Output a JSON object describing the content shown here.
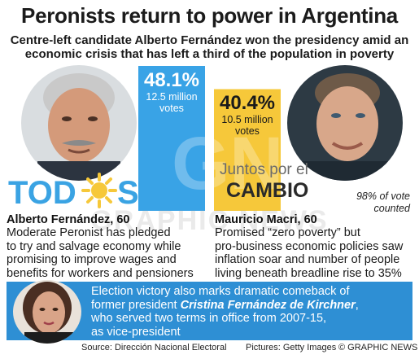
{
  "title": "Peronists return to power in Argentina",
  "subtitle_line1": "Centre-left candidate Alberto Fernández won the presidency amid an",
  "subtitle_line2": "economic crisis that has left a third of the population in poverty",
  "chart_data": {
    "type": "bar",
    "categories": [
      "Alberto Fernández",
      "Mauricio Macri"
    ],
    "values": [
      48.1,
      40.4
    ],
    "value_labels": [
      "48.1%",
      "40.4%"
    ],
    "vote_labels_line1": [
      "12.5 million",
      "10.5 million"
    ],
    "vote_labels_line2": [
      "votes",
      "votes"
    ],
    "ylim": [
      0,
      48.1
    ],
    "colors": [
      "#39a3e6",
      "#f6c83a"
    ]
  },
  "count_note_line1": "98% of vote",
  "count_note_line2": "counted",
  "logos": {
    "todos": "TODOS",
    "juntos_line1": "Juntos por el",
    "juntos_line2": "CAMBIO"
  },
  "watermark": "GRAPHIC NEWS",
  "candidates": [
    {
      "name": "Alberto Fernández, 60",
      "lines": [
        "Moderate Peronist has pledged",
        "to try and salvage economy while",
        "promising to improve wages and",
        "benefits for workers and pensioners"
      ]
    },
    {
      "name": "Mauricio Macri, 60",
      "lines": [
        "Promised “zero poverty” but",
        "pro-business economic policies saw",
        "inflation soar and number of people",
        "living beneath breadline rise to 35%"
      ]
    }
  ],
  "banner": {
    "line1": "Election victory also marks dramatic comeback of",
    "line2": "former president ",
    "line2_name": "Cristina Fernández de Kirchner",
    "line2_end": ",",
    "line3": "who served two terms in office from 2007-15,",
    "line4": "as vice-president"
  },
  "footer": {
    "source": "Source: Dirección Nacional Electoral",
    "pictures": "Pictures: Getty Images",
    "credit": "© GRAPHIC NEWS"
  }
}
